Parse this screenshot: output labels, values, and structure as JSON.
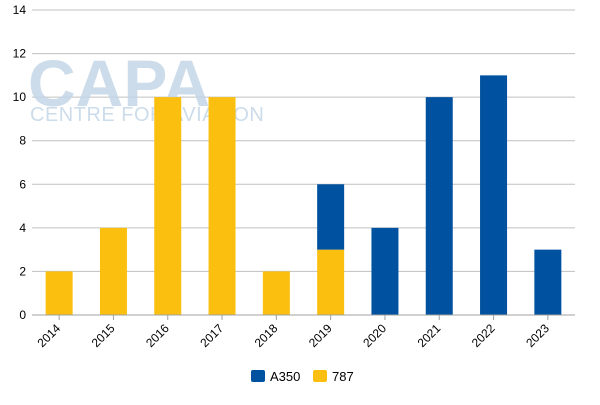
{
  "chart_data": {
    "type": "bar",
    "stacked": true,
    "categories": [
      "2014",
      "2015",
      "2016",
      "2017",
      "2018",
      "2019",
      "2020",
      "2021",
      "2022",
      "2023"
    ],
    "series": [
      {
        "name": "787",
        "color": "#fbbf0f",
        "values": [
          2,
          4,
          10,
          10,
          2,
          3,
          0,
          0,
          0,
          0
        ]
      },
      {
        "name": "A350",
        "color": "#0052a0",
        "values": [
          0,
          0,
          0,
          0,
          0,
          3,
          4,
          10,
          11,
          3
        ]
      }
    ],
    "ylim": [
      0,
      14
    ],
    "yticks": [
      "0",
      "2",
      "4",
      "6",
      "8",
      "10",
      "12",
      "14"
    ],
    "grid": true,
    "legend": {
      "position": "bottom-center",
      "order": [
        "A350",
        "787"
      ]
    },
    "title": "",
    "xlabel": "",
    "ylabel": ""
  },
  "watermark": {
    "logo_text": "CAPA",
    "tagline": "CENTRE FOR AVIATION",
    "color": "#c4d7e8"
  }
}
